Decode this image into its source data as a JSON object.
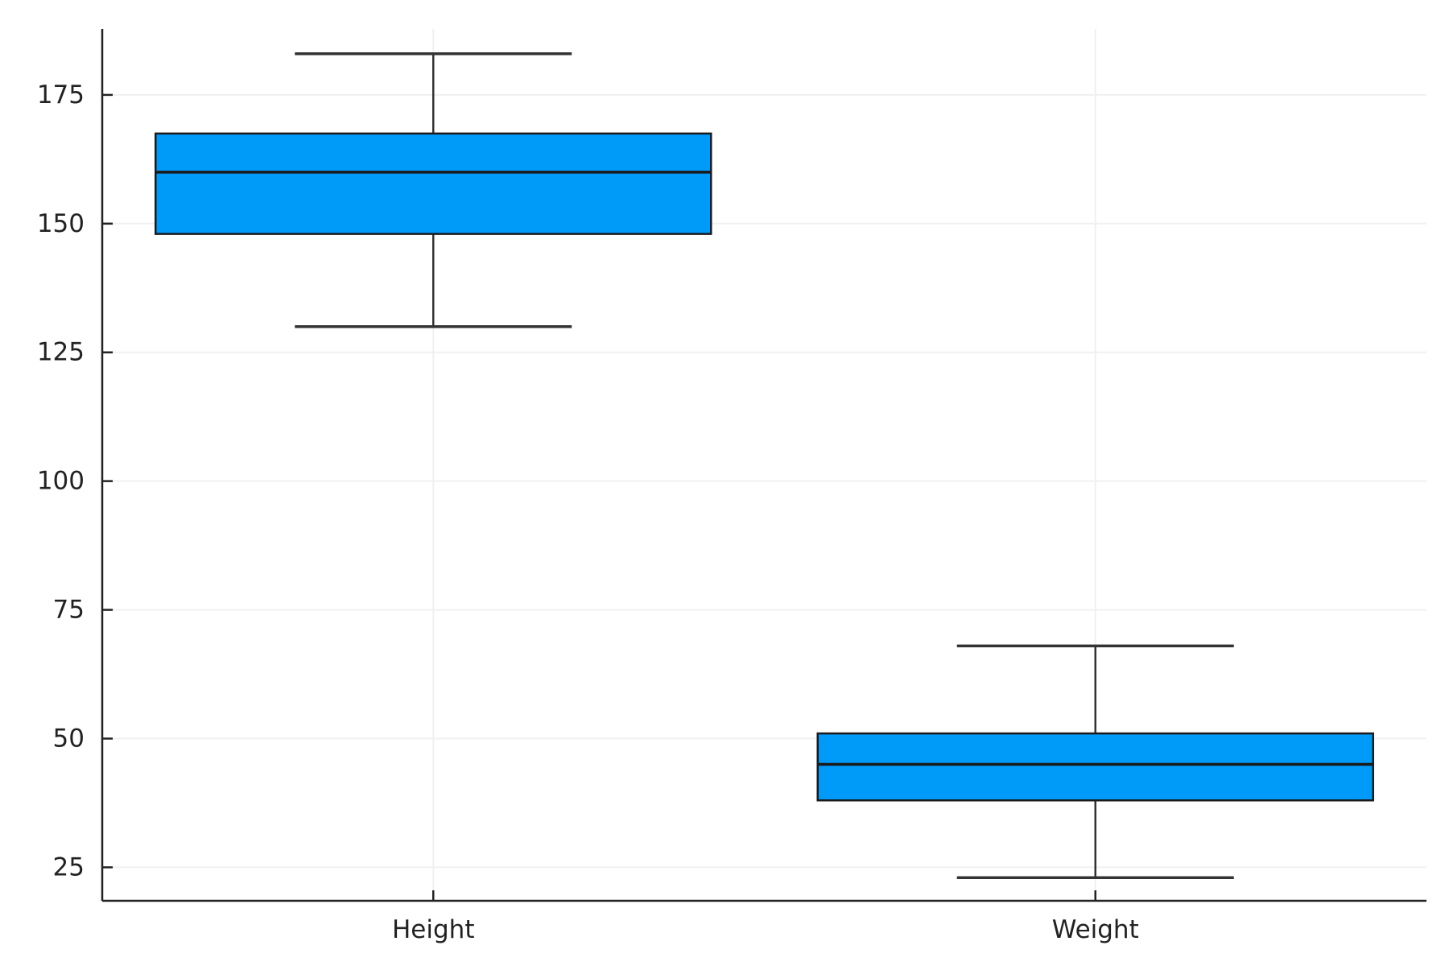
{
  "chart_data": {
    "type": "box",
    "title": "",
    "xlabel": "",
    "ylabel": "",
    "categories": [
      "Height",
      "Weight"
    ],
    "boxes": [
      {
        "category": "Height",
        "whisker_low": 130,
        "q1": 148,
        "median": 160,
        "q3": 167.5,
        "whisker_high": 183
      },
      {
        "category": "Weight",
        "whisker_low": 23,
        "q1": 38,
        "median": 45,
        "q3": 51,
        "whisker_high": 68
      }
    ],
    "yticks": [
      25,
      50,
      75,
      100,
      125,
      150,
      175
    ],
    "ylim": [
      18.5,
      187.8
    ],
    "grid": true,
    "legend": "none",
    "colors": {
      "box_fill": "#009AF9",
      "box_edge": "#1a1a1a",
      "whisker": "#333333",
      "axis": "#222222",
      "grid": "#f0f0f0"
    }
  }
}
